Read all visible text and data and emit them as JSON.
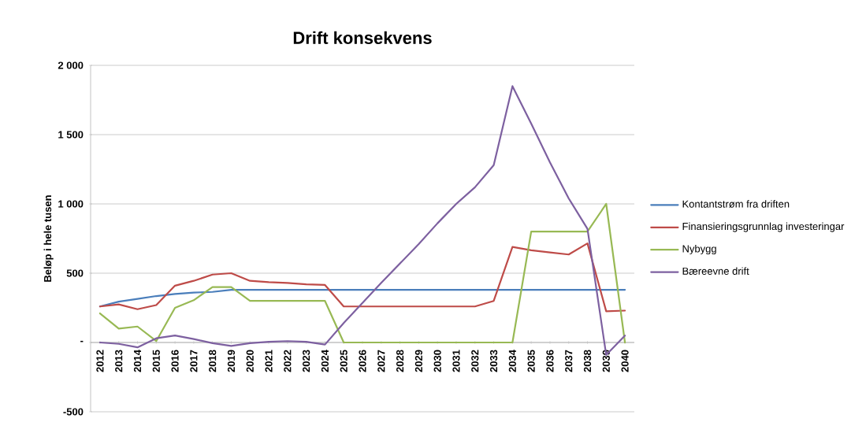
{
  "chart_data": {
    "type": "line",
    "title": "Drift konsekvens",
    "ylabel": "Beløp i hele tusen",
    "categories": [
      "2012",
      "2013",
      "2014",
      "2015",
      "2016",
      "2017",
      "2018",
      "2019",
      "2020",
      "2021",
      "2022",
      "2023",
      "2024",
      "2025",
      "2026",
      "2027",
      "2028",
      "2029",
      "2030",
      "2031",
      "2032",
      "2033",
      "2034",
      "2035",
      "2036",
      "2037",
      "2038",
      "2039",
      "2040"
    ],
    "series": [
      {
        "name": "Kontantstrøm fra driften",
        "color": "#4a7ebb",
        "values": [
          260,
          295,
          315,
          335,
          350,
          360,
          365,
          380,
          380,
          380,
          380,
          380,
          380,
          380,
          380,
          380,
          380,
          380,
          380,
          380,
          380,
          380,
          380,
          380,
          380,
          380,
          380,
          380,
          380
        ]
      },
      {
        "name": "Finansieringsgrunnlag investeringar",
        "color": "#be4b48",
        "values": [
          260,
          275,
          240,
          270,
          410,
          445,
          490,
          500,
          445,
          435,
          430,
          420,
          415,
          260,
          260,
          260,
          260,
          260,
          260,
          260,
          260,
          300,
          690,
          665,
          650,
          635,
          715,
          225,
          230
        ]
      },
      {
        "name": "Nybygg",
        "color": "#98b954",
        "values": [
          210,
          100,
          115,
          10,
          250,
          305,
          400,
          400,
          300,
          300,
          300,
          300,
          300,
          0,
          0,
          0,
          0,
          0,
          0,
          0,
          0,
          0,
          0,
          800,
          800,
          800,
          800,
          1000,
          0
        ]
      },
      {
        "name": "Bæreevne drift",
        "color": "#7d60a0",
        "values": [
          0,
          -10,
          -35,
          30,
          50,
          25,
          -5,
          -25,
          -5,
          5,
          10,
          5,
          -15,
          140,
          285,
          430,
          570,
          710,
          860,
          1000,
          1120,
          1280,
          1850,
          1580,
          1300,
          1040,
          820,
          -90,
          50
        ]
      }
    ],
    "ylim": [
      -500,
      2000
    ],
    "yticks": [
      -500,
      {
        "value": 0,
        "label": "-"
      },
      500,
      {
        "value": 1000,
        "label": "1 000"
      },
      {
        "value": 1500,
        "label": "1 500"
      },
      {
        "value": 2000,
        "label": "2 000"
      }
    ],
    "grid": "y",
    "legend": "right",
    "marker": "none",
    "line_style": "solid"
  }
}
